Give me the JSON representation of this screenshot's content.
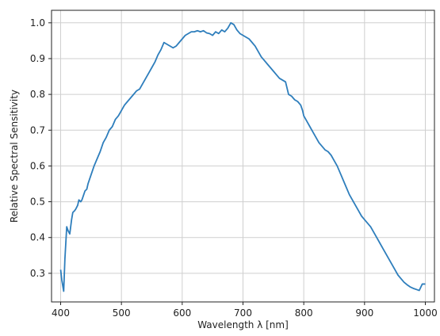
{
  "chart_data": {
    "type": "line",
    "xlabel": "Wavelength λ [nm]",
    "ylabel": "Relative Spectral Sensitivity",
    "xlim": [
      385,
      1015
    ],
    "ylim": [
      0.22,
      1.035
    ],
    "xticks": [
      400,
      500,
      600,
      700,
      800,
      900,
      1000
    ],
    "yticks": [
      0.3,
      0.4,
      0.5,
      0.6,
      0.7,
      0.8,
      0.9,
      1.0
    ],
    "grid": true,
    "color": "#2e7ebc",
    "series": [
      {
        "x": [
          400,
          402,
          405,
          407,
          410,
          412,
          415,
          418,
          420,
          423,
          425,
          428,
          430,
          433,
          435,
          438,
          440,
          443,
          445,
          448,
          450,
          455,
          460,
          465,
          470,
          475,
          480,
          485,
          490,
          495,
          500,
          505,
          510,
          515,
          520,
          525,
          530,
          535,
          540,
          545,
          550,
          555,
          560,
          565,
          570,
          575,
          580,
          585,
          590,
          595,
          600,
          605,
          610,
          615,
          620,
          625,
          630,
          635,
          640,
          645,
          650,
          655,
          660,
          665,
          670,
          675,
          680,
          685,
          690,
          695,
          700,
          705,
          710,
          715,
          720,
          725,
          730,
          735,
          740,
          745,
          750,
          755,
          760,
          765,
          770,
          775,
          780,
          785,
          790,
          795,
          798,
          800,
          805,
          810,
          815,
          820,
          825,
          830,
          835,
          840,
          845,
          850,
          855,
          860,
          865,
          870,
          875,
          880,
          885,
          890,
          895,
          900,
          905,
          910,
          915,
          920,
          925,
          930,
          935,
          940,
          945,
          950,
          955,
          960,
          965,
          970,
          975,
          980,
          985,
          990,
          995,
          1000
        ],
        "y": [
          0.31,
          0.28,
          0.25,
          0.34,
          0.43,
          0.42,
          0.41,
          0.45,
          0.47,
          0.475,
          0.48,
          0.49,
          0.505,
          0.5,
          0.505,
          0.52,
          0.53,
          0.535,
          0.55,
          0.565,
          0.575,
          0.6,
          0.62,
          0.64,
          0.665,
          0.68,
          0.7,
          0.71,
          0.73,
          0.74,
          0.755,
          0.77,
          0.78,
          0.79,
          0.8,
          0.81,
          0.815,
          0.83,
          0.845,
          0.86,
          0.875,
          0.89,
          0.91,
          0.925,
          0.945,
          0.94,
          0.935,
          0.93,
          0.935,
          0.945,
          0.955,
          0.965,
          0.97,
          0.975,
          0.975,
          0.978,
          0.975,
          0.978,
          0.972,
          0.97,
          0.965,
          0.975,
          0.97,
          0.98,
          0.975,
          0.985,
          1.0,
          0.995,
          0.98,
          0.97,
          0.965,
          0.96,
          0.955,
          0.945,
          0.935,
          0.92,
          0.905,
          0.895,
          0.885,
          0.875,
          0.865,
          0.855,
          0.845,
          0.84,
          0.835,
          0.8,
          0.795,
          0.785,
          0.78,
          0.77,
          0.755,
          0.74,
          0.725,
          0.71,
          0.695,
          0.68,
          0.665,
          0.655,
          0.645,
          0.64,
          0.63,
          0.615,
          0.6,
          0.58,
          0.56,
          0.54,
          0.52,
          0.505,
          0.49,
          0.475,
          0.46,
          0.45,
          0.44,
          0.43,
          0.415,
          0.4,
          0.385,
          0.37,
          0.355,
          0.34,
          0.325,
          0.31,
          0.295,
          0.285,
          0.275,
          0.268,
          0.262,
          0.258,
          0.255,
          0.252,
          0.27,
          0.27
        ]
      }
    ]
  }
}
